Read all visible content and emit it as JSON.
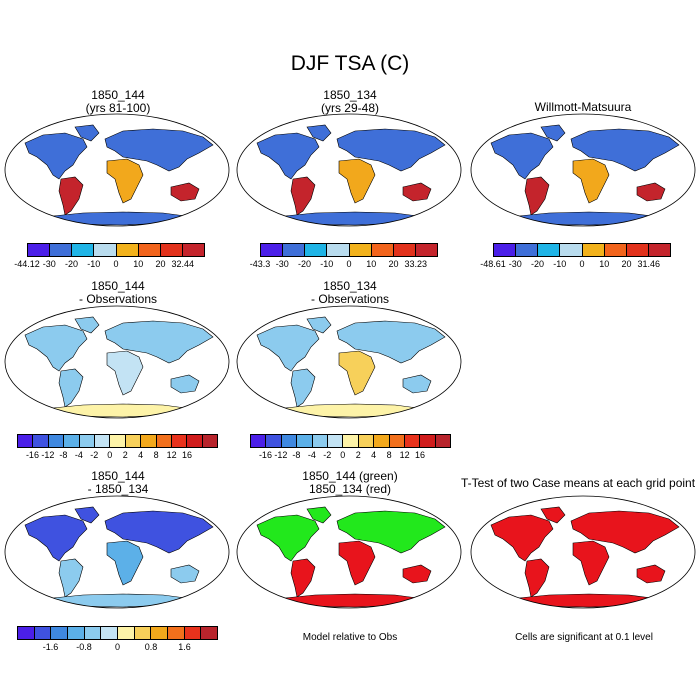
{
  "title": "DJF TSA (C)",
  "panels": [
    {
      "line1": "1850_144",
      "line2": "(yrs 81-100)"
    },
    {
      "line1": "1850_134",
      "line2": "(yrs 29-48)"
    },
    {
      "line1": "Willmott-Matsuura",
      "line2": ""
    },
    {
      "line1": "1850_144",
      "line2": "- Observations"
    },
    {
      "line1": "1850_134",
      "line2": "- Observations"
    },
    {
      "line1": "1850_144",
      "line2": "- 1850_134"
    },
    {
      "line1": "1850_144 (green)",
      "line2": "1850_134 (red)"
    },
    {
      "line1": "T-Test of two Case means at each grid point",
      "line2": ""
    }
  ],
  "notes": {
    "model_relative": "Model relative to Obs",
    "significance": "Cells are significant at 0.1 level"
  },
  "colorbars": {
    "cb1": {
      "colors": [
        "#4b1fe8",
        "#3f6fd8",
        "#1fb4e6",
        "#b9dcee",
        "#f2b21c",
        "#f2641c",
        "#e2321c",
        "#c4242c"
      ],
      "ticks": [
        "-44.12",
        "-30",
        "-20",
        "-10",
        "0",
        "10",
        "20",
        "32.44"
      ]
    },
    "cb2": {
      "colors": [
        "#4b1fe8",
        "#3f6fd8",
        "#1fb4e6",
        "#b9dcee",
        "#f2b21c",
        "#f2641c",
        "#e2321c",
        "#c4242c"
      ],
      "ticks": [
        "-43.3",
        "-30",
        "-20",
        "-10",
        "0",
        "10",
        "20",
        "33.23"
      ]
    },
    "cb3": {
      "colors": [
        "#4b1fe8",
        "#3f6fd8",
        "#1fb4e6",
        "#b9dcee",
        "#f2b21c",
        "#f2641c",
        "#e2321c",
        "#c4242c"
      ],
      "ticks": [
        "-48.61",
        "-30",
        "-20",
        "-10",
        "0",
        "10",
        "20",
        "31.46"
      ]
    },
    "cb4": {
      "colors": [
        "#4b1fe8",
        "#3f52e0",
        "#3f88e0",
        "#5cb0e8",
        "#8ccbee",
        "#c3e3f4",
        "#fdf3a8",
        "#f7d05a",
        "#f2a81c",
        "#f2701c",
        "#e8321c",
        "#d01c1c",
        "#b8242c"
      ],
      "ticks": [
        "-16",
        "-12",
        "-8",
        "-4",
        "-2",
        "0",
        "2",
        "4",
        "8",
        "12",
        "16"
      ]
    },
    "cb5": {
      "colors": [
        "#4b1fe8",
        "#3f52e0",
        "#3f88e0",
        "#5cb0e8",
        "#8ccbee",
        "#c3e3f4",
        "#fdf3a8",
        "#f7d05a",
        "#f2a81c",
        "#f2701c",
        "#e8321c",
        "#d01c1c",
        "#b8242c"
      ],
      "ticks": [
        "-16",
        "-12",
        "-8",
        "-4",
        "-2",
        "0",
        "2",
        "4",
        "8",
        "12",
        "16"
      ]
    },
    "cb6": {
      "colors": [
        "#4b1fe8",
        "#3f52e0",
        "#3f88e0",
        "#5cb0e8",
        "#8ccbee",
        "#c3e3f4",
        "#fdf3a8",
        "#f7d05a",
        "#f2a81c",
        "#f2701c",
        "#e8321c",
        "#b8242c"
      ],
      "ticks": [
        "-1.6",
        "-0.8",
        "0",
        "0.8",
        "1.6"
      ]
    }
  },
  "map_fills": {
    "m1": {
      "north": "#3f6fd8",
      "mid": "#f2a81c",
      "south": "#c4242c",
      "pole": "#3f6fd8"
    },
    "m2": {
      "north": "#3f6fd8",
      "mid": "#f2a81c",
      "south": "#c4242c",
      "pole": "#3f6fd8"
    },
    "m3": {
      "north": "#3f6fd8",
      "mid": "#f2a81c",
      "south": "#c4242c",
      "pole": "#3f6fd8"
    },
    "m4": {
      "north": "#8ccbee",
      "mid": "#c3e3f4",
      "south": "#8ccbee",
      "pole": "#fdf3a8"
    },
    "m5": {
      "north": "#8ccbee",
      "mid": "#f7d05a",
      "south": "#8ccbee",
      "pole": "#fdf3a8"
    },
    "m6": {
      "north": "#3f52e0",
      "mid": "#5cb0e8",
      "south": "#8ccbee",
      "pole": "#8ccbee"
    },
    "m7": {
      "north": "#22e81c",
      "mid": "#e8141c",
      "south": "#e8141c",
      "pole": "#e8141c"
    },
    "m8": {
      "north": "#e8141c",
      "mid": "#e8141c",
      "south": "#e8141c",
      "pole": "#e8141c"
    }
  }
}
